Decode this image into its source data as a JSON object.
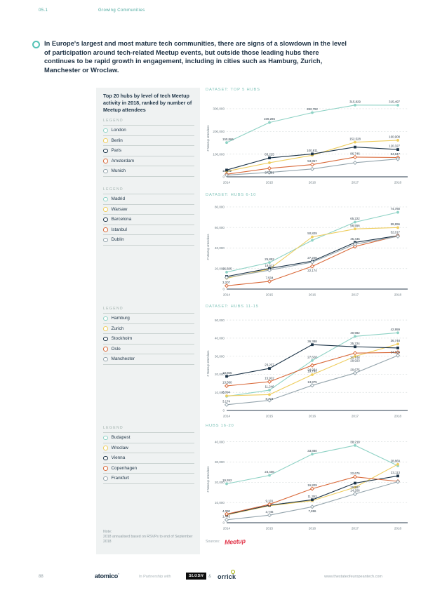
{
  "page": {
    "section_number": "05.1",
    "section_title": "Growing Communities",
    "page_number": "88",
    "partnership_label": "In Partnership with",
    "ampersand": "&",
    "atomico_logo": "atomico",
    "slush_logo": "SLUSH",
    "orrick_logo": "orrick",
    "url": "www.thestateofeuropeantech.com"
  },
  "intro": {
    "text": "In Europe's largest and most mature tech communities, there are signs of a slowdown in the level of participation around tech-related Meetup events, but outside those leading hubs there continues to be rapid growth in engagement, including in cities such as Hamburg, Zurich, Manchester or Wroclaw."
  },
  "sidebar": {
    "title": "Top 20 hubs by level of tech Meetup activity in 2018, ranked by number of Meetup attendees",
    "legend_label": "LEGEND",
    "legends": [
      {
        "items": [
          {
            "label": "London",
            "color": "teal"
          },
          {
            "label": "Berlin",
            "color": "yellow"
          },
          {
            "label": "Paris",
            "color": "navy"
          },
          {
            "label": "Amsterdam",
            "color": "orange"
          },
          {
            "label": "Munich",
            "color": "gray"
          }
        ]
      },
      {
        "items": [
          {
            "label": "Madrid",
            "color": "teal"
          },
          {
            "label": "Warsaw",
            "color": "yellow"
          },
          {
            "label": "Barcelona",
            "color": "navy"
          },
          {
            "label": "Istanbul",
            "color": "orange"
          },
          {
            "label": "Dublin",
            "color": "gray"
          }
        ]
      },
      {
        "items": [
          {
            "label": "Hamburg",
            "color": "teal"
          },
          {
            "label": "Zurich",
            "color": "yellow"
          },
          {
            "label": "Stockholm",
            "color": "navy"
          },
          {
            "label": "Oslo",
            "color": "orange"
          },
          {
            "label": "Manchester",
            "color": "gray"
          }
        ]
      },
      {
        "items": [
          {
            "label": "Budapest",
            "color": "teal"
          },
          {
            "label": "Wroclaw",
            "color": "yellow"
          },
          {
            "label": "Vienna",
            "color": "navy"
          },
          {
            "label": "Copenhagen",
            "color": "orange"
          },
          {
            "label": "Frankfurt",
            "color": "gray"
          }
        ]
      }
    ],
    "note_label": "Note:",
    "note": "2018 annualised based on RSVPs to end of September 2018"
  },
  "source": {
    "label": "Sources:",
    "name": "Meetup"
  },
  "colors": {
    "teal": "#8ed2c5",
    "yellow": "#eecd5e",
    "navy": "#1b3347",
    "orange": "#d96a3b",
    "gray": "#95a5ad",
    "grid": "#d8dddd",
    "axis": "#2a3b4d",
    "tick": "#6b7a82",
    "label": "#33424e",
    "chart_title": "#7fc3b9"
  },
  "chart_data": [
    {
      "type": "line",
      "title": "DATASET: TOP 5 HUBS",
      "x": [
        2014,
        2015,
        2016,
        2017,
        2018
      ],
      "ylabel": "# Meetup attendees",
      "ylim": [
        0,
        340000
      ],
      "yticks": [
        0,
        100000,
        200000,
        300000
      ],
      "grid": true,
      "legend_position": "left",
      "series": [
        {
          "name": "London",
          "color": "teal",
          "marker": "circle",
          "values": [
            150866,
            239286,
            282792,
            315829,
            315497
          ],
          "labels": [
            "150,866",
            "239,286",
            "282,792",
            "315,829",
            "315,497"
          ]
        },
        {
          "name": "Berlin",
          "color": "yellow",
          "marker": "circle",
          "values": [
            24000,
            62000,
            95000,
            152528,
            160908
          ],
          "labels": [
            "",
            "",
            "",
            "152,528",
            "160,908"
          ]
        },
        {
          "name": "Paris",
          "color": "navy",
          "marker": "square",
          "values": [
            29900,
            83225,
            100811,
            131000,
            120327
          ],
          "labels": [
            "",
            "83,225",
            "100,811",
            "",
            "120,327"
          ]
        },
        {
          "name": "Amsterdam",
          "color": "orange",
          "marker": "diamond",
          "values": [
            11452,
            37351,
            53857,
            86746,
            84847
          ],
          "labels": [
            "11,452",
            "37,351",
            "53,857",
            "86,746",
            "84,847"
          ]
        },
        {
          "name": "Munich",
          "color": "gray",
          "marker": "diamond",
          "values": [
            7500,
            19500,
            34500,
            62000,
            78500
          ],
          "labels": [
            "",
            "",
            "",
            "",
            ""
          ]
        }
      ]
    },
    {
      "type": "line",
      "title": "DATASET: HUBS 6-10",
      "x": [
        2014,
        2015,
        2016,
        2017,
        2018
      ],
      "ylabel": "# Meetup attendees",
      "ylim": [
        0,
        82000
      ],
      "yticks": [
        0,
        20000,
        40000,
        60000,
        80000
      ],
      "grid": true,
      "legend_position": "left",
      "series": [
        {
          "name": "Madrid",
          "color": "teal",
          "marker": "circle",
          "values": [
            16505,
            25852,
            47500,
            65222,
            74780
          ],
          "labels": [
            "16,505",
            "25,852",
            "",
            "65,222",
            "74,780"
          ]
        },
        {
          "name": "Warsaw",
          "color": "yellow",
          "marker": "circle",
          "values": [
            10500,
            19511,
            50829,
            58556,
            59896
          ],
          "labels": [
            "",
            "19,511",
            "50,829",
            "58,556",
            "59,896"
          ]
        },
        {
          "name": "Barcelona",
          "color": "navy",
          "marker": "square",
          "values": [
            12300,
            20100,
            27208,
            45445,
            52017
          ],
          "labels": [
            "",
            "",
            "27,208",
            "45,445",
            "52,017"
          ]
        },
        {
          "name": "Istanbul",
          "color": "orange",
          "marker": "diamond",
          "values": [
            3207,
            7504,
            22174,
            41500,
            51800
          ],
          "labels": [
            "3,207",
            "7,504",
            "22,174",
            "",
            ""
          ]
        },
        {
          "name": "Dublin",
          "color": "gray",
          "marker": "diamond",
          "values": [
            11300,
            18400,
            26200,
            43800,
            51300
          ],
          "labels": [
            "",
            "",
            "",
            "",
            ""
          ]
        }
      ]
    },
    {
      "type": "line",
      "title": "DATASET: HUBS 11-15",
      "x": [
        2014,
        2015,
        2016,
        2017,
        2018
      ],
      "ylabel": "# Meetup attendees",
      "ylim": [
        0,
        52000
      ],
      "yticks": [
        0,
        10000,
        20000,
        30000,
        40000,
        50000
      ],
      "grid": true,
      "legend_position": "left",
      "series": [
        {
          "name": "Hamburg",
          "color": "teal",
          "marker": "circle",
          "values": [
            7800,
            11246,
            27628,
            40982,
            42959
          ],
          "labels": [
            "",
            "11,246",
            "27,628",
            "40,982",
            "42,959"
          ]
        },
        {
          "name": "Zurich",
          "color": "yellow",
          "marker": "circle",
          "values": [
            8094,
            8774,
            19793,
            29923,
            36748
          ],
          "labels": [
            "8,094",
            "8,774",
            "19,793",
            "29,923",
            "36,748"
          ]
        },
        {
          "name": "Stockholm",
          "color": "navy",
          "marker": "square",
          "values": [
            18865,
            23237,
            36388,
            35224,
            34594
          ],
          "labels": [
            "18,865",
            "23,237",
            "36,388",
            "35,224",
            "34,594"
          ]
        },
        {
          "name": "Oslo",
          "color": "orange",
          "marker": "diamond",
          "values": [
            13580,
            15922,
            24934,
            31748,
            32100
          ],
          "labels": [
            "13,580",
            "15,922",
            "24,934",
            "31,748",
            ""
          ]
        },
        {
          "name": "Manchester",
          "color": "gray",
          "marker": "diamond",
          "values": [
            3174,
            5600,
            13875,
            20675,
            30400
          ],
          "labels": [
            "3,174",
            "",
            "13,875",
            "20,675",
            ""
          ]
        }
      ]
    },
    {
      "type": "line",
      "title": "HUBS 16-20",
      "x": [
        2014,
        2015,
        2016,
        2017,
        2018
      ],
      "ylabel": "# Meetup attendees",
      "ylim": [
        0,
        43000
      ],
      "yticks": [
        0,
        10000,
        20000,
        30000,
        40000
      ],
      "grid": true,
      "legend_position": "left",
      "series": [
        {
          "name": "Budapest",
          "color": "teal",
          "marker": "circle",
          "values": [
            19262,
            23408,
            33880,
            38218,
            28150
          ],
          "labels": [
            "19,262",
            "23,408",
            "33,880",
            "38,218",
            ""
          ]
        },
        {
          "name": "Wroclaw",
          "color": "yellow",
          "marker": "circle",
          "values": [
            3900,
            8400,
            10900,
            17500,
            28869
          ],
          "labels": [
            "",
            "",
            "",
            "",
            "28,869"
          ]
        },
        {
          "name": "Vienna",
          "color": "navy",
          "marker": "square",
          "values": [
            4090,
            8650,
            11352,
            19587,
            23113
          ],
          "labels": [
            "4,090",
            "",
            "11,352",
            "19,587",
            "23,113"
          ]
        },
        {
          "name": "Copenhagen",
          "color": "orange",
          "marker": "diamond",
          "values": [
            4300,
            9101,
            16829,
            22676,
            20450
          ],
          "labels": [
            "",
            "9,101",
            "16,829",
            "22,676",
            ""
          ]
        },
        {
          "name": "Frankfurt",
          "color": "gray",
          "marker": "diamond",
          "values": [
            1445,
            3746,
            7886,
            14206,
            20250
          ],
          "labels": [
            "1,445",
            "3,746",
            "7,886",
            "14,206",
            ""
          ]
        }
      ]
    }
  ]
}
